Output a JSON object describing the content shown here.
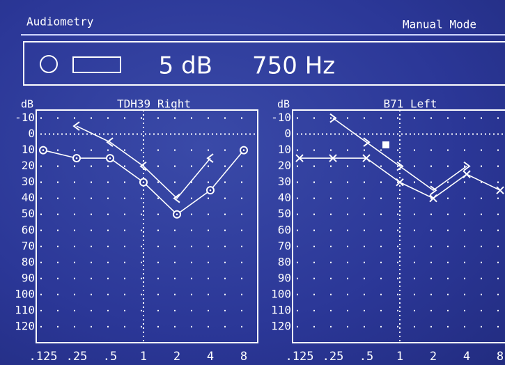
{
  "header": {
    "title": "Audiometry",
    "mode": "Manual Mode"
  },
  "display": {
    "level": "5 dB",
    "frequency": "750 Hz"
  },
  "chart_data": [
    {
      "type": "line",
      "title": "TDH39 Right",
      "y_label": "dB",
      "categories": [
        ".125",
        ".25",
        ".5",
        "1",
        "2",
        "4",
        "8"
      ],
      "ylim": [
        -15,
        130
      ],
      "yticks": [
        -10,
        0,
        10,
        20,
        30,
        40,
        50,
        60,
        70,
        80,
        90,
        100,
        110,
        120
      ],
      "grid": true,
      "series": [
        {
          "color": "#ffffff",
          "marker": "o",
          "values": [
            10,
            15,
            15,
            30,
            50,
            35,
            10
          ]
        },
        {
          "color": "#ffffff",
          "marker": "<",
          "values": [
            null,
            -5,
            5,
            20,
            40,
            15,
            null
          ]
        }
      ]
    },
    {
      "type": "line",
      "title": "B71 Left",
      "y_label": "dB",
      "categories": [
        ".125",
        ".25",
        ".5",
        "1",
        "2",
        "4",
        "8"
      ],
      "ylim": [
        -15,
        130
      ],
      "yticks": [
        -10,
        0,
        10,
        20,
        30,
        40,
        50,
        60,
        70,
        80,
        90,
        100,
        110,
        120
      ],
      "grid": true,
      "series": [
        {
          "color": "#ffffff",
          "marker": "x",
          "values": [
            15,
            15,
            15,
            30,
            40,
            25,
            35
          ]
        },
        {
          "color": "#ffffff",
          "marker": ">",
          "values": [
            null,
            -10,
            5,
            20,
            35,
            20,
            null
          ]
        }
      ]
    }
  ]
}
